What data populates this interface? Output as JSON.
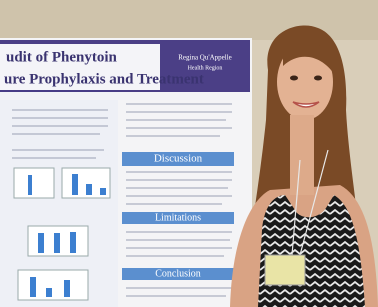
{
  "poster": {
    "title_line1": "udit of Phenytoin",
    "title_line2": "ure Prophylaxis and Treatment",
    "logo_line1": "Regina Qu'Appelle",
    "logo_line2": "Health Region",
    "sections": [
      "Discussion",
      "Limitations",
      "Conclusion"
    ]
  }
}
